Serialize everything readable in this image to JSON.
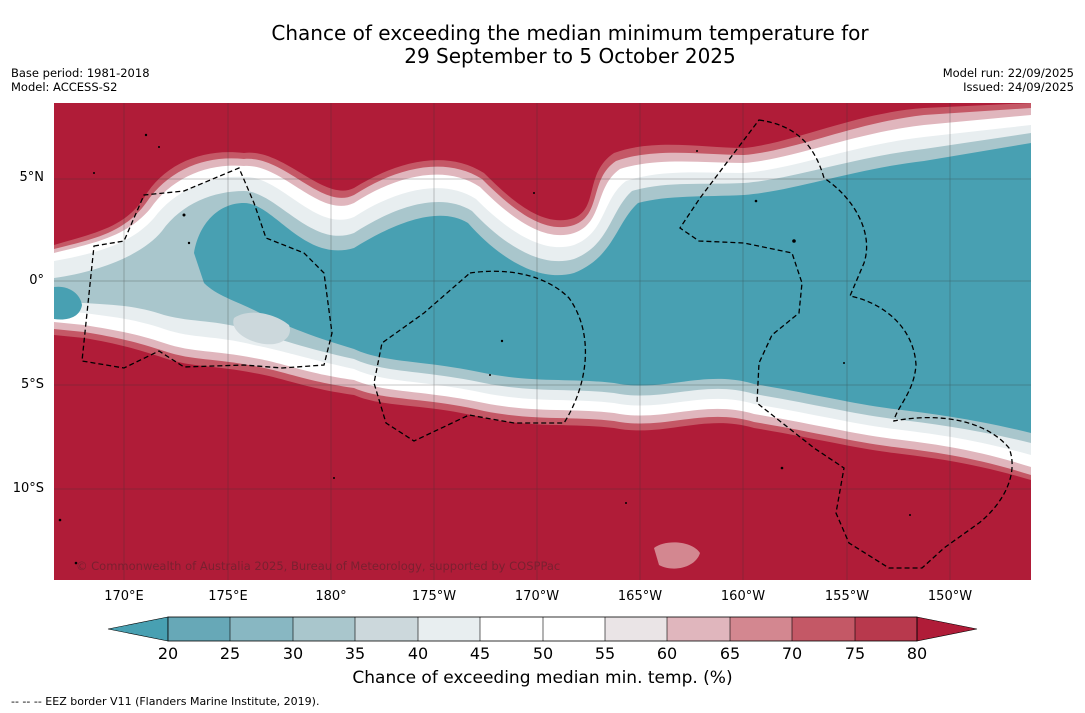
{
  "title": {
    "line1": "Chance of exceeding the median minimum temperature for",
    "line2": "29 September to 5 October 2025"
  },
  "meta": {
    "base_period": "Base period: 1981-2018",
    "model": "Model: ACCESS-S2",
    "model_run": "Model run: 22/09/2025",
    "issued": "Issued: 24/09/2025"
  },
  "map": {
    "copyright": "© Commonwealth of Australia 2025, Bureau of Meteorology, supported by COSPPac",
    "lat_labels": [
      "5°N",
      "0°",
      "5°S",
      "10°S"
    ],
    "lon_labels": [
      "170°E",
      "175°E",
      "180°",
      "175°W",
      "170°W",
      "165°W",
      "160°W",
      "155°W",
      "150°W"
    ],
    "colors": {
      "warm_high": "#b01c38",
      "cool_low": "#48a0b2",
      "border": "#000000"
    }
  },
  "colorbar": {
    "ticks": [
      "20",
      "25",
      "30",
      "35",
      "40",
      "45",
      "50",
      "55",
      "60",
      "65",
      "70",
      "75",
      "80"
    ],
    "colors": [
      "#48a0b2",
      "#67a8b7",
      "#88b7c2",
      "#a9c6cc",
      "#ccd8dc",
      "#e8eef0",
      "#ffffff",
      "#ffffff",
      "#eae4e6",
      "#e0b6bd",
      "#d38790",
      "#c45866",
      "#b8394d",
      "#b01c38"
    ],
    "label": "Chance of exceeding median min. temp. (%)"
  },
  "legend": {
    "text": "-- -- -- EEZ border V11 (Flanders Marine Institute, 2019)."
  }
}
